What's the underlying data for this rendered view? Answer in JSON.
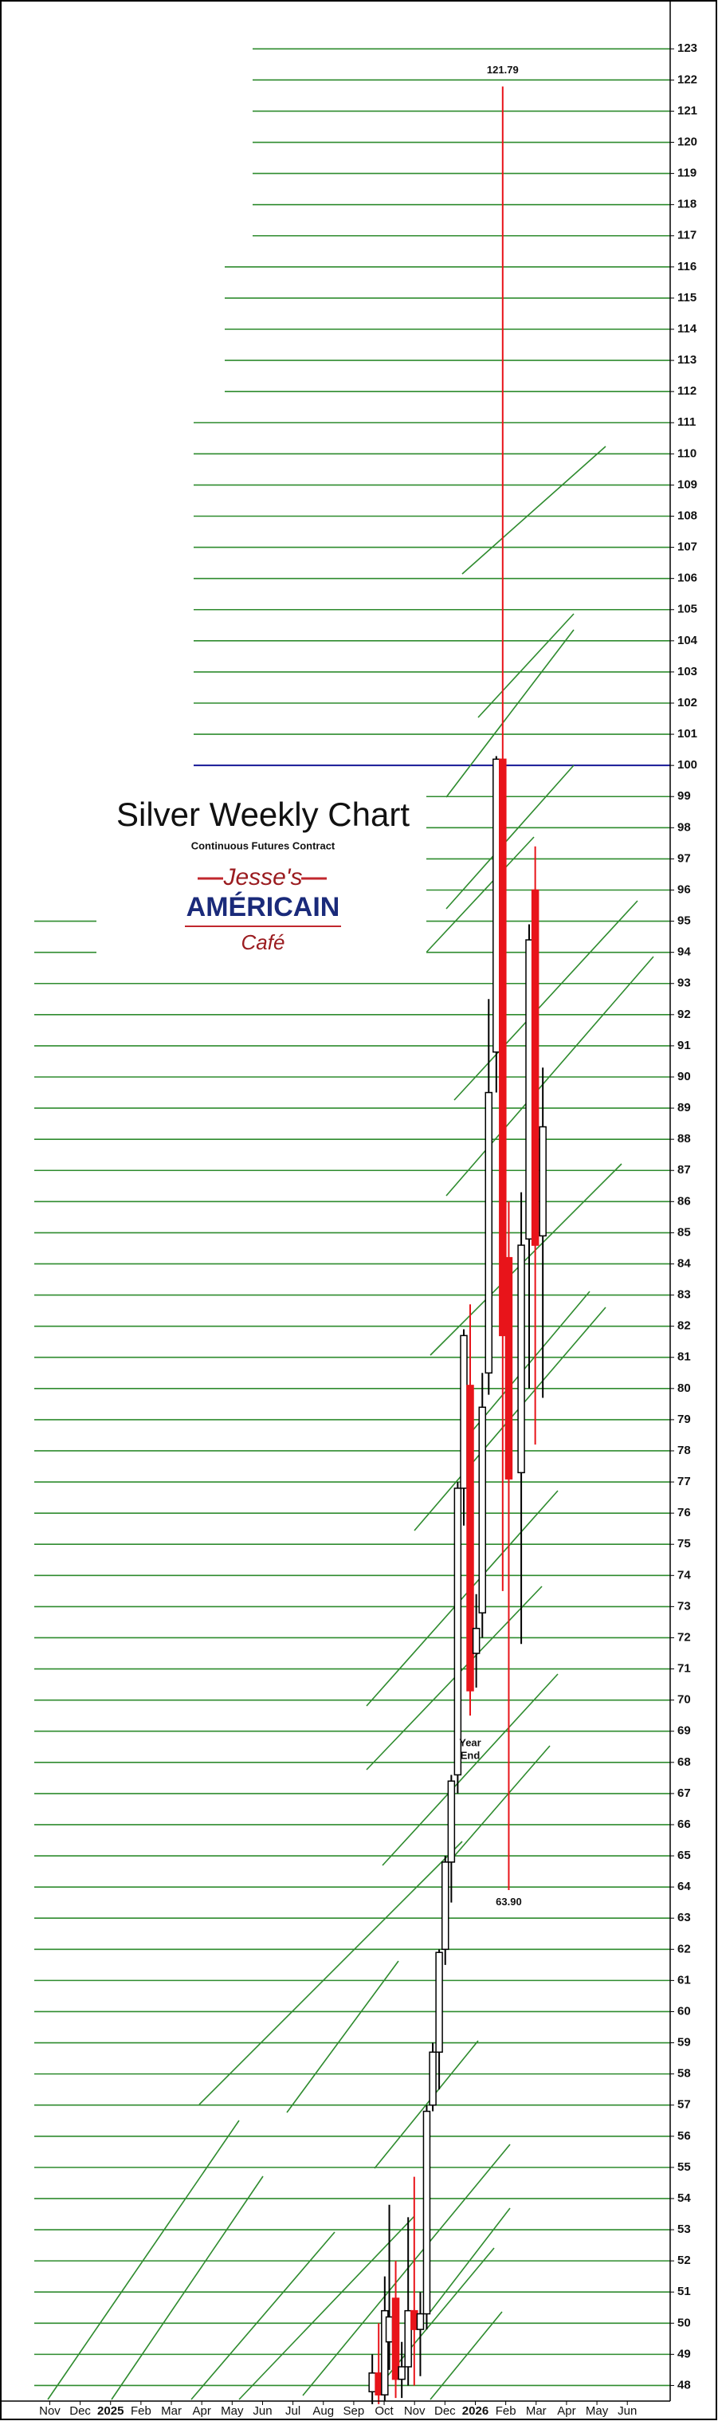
{
  "chart_data": {
    "type": "candlestick",
    "title": "Silver Weekly Chart",
    "subtitle": "Continuous Futures Contract",
    "logo": {
      "line1": "Jesse's",
      "line2": "AMÉRICAIN",
      "line3": "Café"
    },
    "x": [
      10.61,
      10.82,
      11.02,
      11.17,
      11.38,
      11.58,
      11.79,
      11.99,
      12.19,
      12.4,
      12.6,
      12.81,
      13.01,
      13.21,
      13.42,
      13.62,
      13.83,
      14.03,
      14.23,
      14.44,
      14.69,
      14.9,
      15.1,
      15.51,
      15.77,
      15.97,
      16.22
    ],
    "open": [
      47.8,
      48.4,
      47.7,
      49.4,
      50.8,
      48.2,
      48.6,
      50.4,
      49.8,
      50.3,
      57.0,
      58.7,
      62.0,
      64.8,
      67.6,
      76.8,
      80.1,
      71.5,
      72.8,
      80.5,
      90.8,
      100.2,
      84.2,
      77.3,
      84.8,
      96.0,
      84.9
    ],
    "high": [
      49.0,
      50.0,
      51.5,
      53.8,
      52.0,
      49.4,
      53.4,
      54.7,
      51.0,
      57.0,
      59.0,
      62.0,
      65.0,
      67.6,
      77.0,
      81.9,
      82.7,
      73.4,
      80.5,
      92.5,
      100.3,
      121.79,
      86.0,
      86.3,
      94.9,
      97.4,
      90.3
    ],
    "low": [
      47.4,
      47.4,
      47.5,
      48.5,
      47.6,
      47.6,
      48.0,
      48.0,
      48.3,
      49.8,
      56.8,
      57.5,
      61.5,
      63.5,
      67.0,
      75.6,
      69.5,
      70.4,
      72.0,
      79.8,
      89.5,
      73.5,
      63.9,
      71.8,
      80.0,
      78.2,
      79.7
    ],
    "close": [
      48.4,
      47.7,
      50.4,
      50.2,
      48.2,
      48.6,
      50.4,
      49.8,
      50.3,
      56.8,
      58.7,
      61.9,
      64.8,
      67.4,
      76.8,
      81.7,
      70.3,
      72.3,
      79.4,
      89.5,
      100.2,
      81.7,
      77.1,
      84.6,
      94.4,
      84.6,
      88.4
    ],
    "up_color": "#000000",
    "down_color": "#e8141a",
    "annotations": [
      {
        "text": "121.79",
        "x": 14.9,
        "y": 122.3
      },
      {
        "text": "63.90",
        "x": 15.1,
        "y": 63.5
      },
      {
        "text": "Year End",
        "x": 13.83,
        "y": 68.6
      }
    ],
    "reference_line": {
      "value": 100,
      "color": "#1a1a9a"
    },
    "grid": true,
    "grid_color": "#2e8b2e",
    "xlim": [
      -0.51,
      20.41
    ],
    "xticks": [
      {
        "value": 0,
        "label": "Nov"
      },
      {
        "value": 1,
        "label": "Dec"
      },
      {
        "value": 2,
        "label": "2025"
      },
      {
        "value": 3,
        "label": "Feb"
      },
      {
        "value": 4,
        "label": "Mar"
      },
      {
        "value": 5,
        "label": "Apr"
      },
      {
        "value": 6,
        "label": "May"
      },
      {
        "value": 7,
        "label": "Jun"
      },
      {
        "value": 8,
        "label": "Jul"
      },
      {
        "value": 9,
        "label": "Aug"
      },
      {
        "value": 10,
        "label": "Sep"
      },
      {
        "value": 11,
        "label": "Oct"
      },
      {
        "value": 12,
        "label": "Nov"
      },
      {
        "value": 13,
        "label": "Dec"
      },
      {
        "value": 14,
        "label": "2026"
      },
      {
        "value": 15,
        "label": "Feb"
      },
      {
        "value": 16,
        "label": "Mar"
      },
      {
        "value": 17,
        "label": "Apr"
      },
      {
        "value": 18,
        "label": "May"
      },
      {
        "value": 19,
        "label": "Jun"
      }
    ],
    "ylim": [
      47.5,
      123.8
    ],
    "yticks": [
      48,
      49,
      50,
      51,
      52,
      53,
      54,
      55,
      56,
      57,
      58,
      59,
      60,
      61,
      62,
      63,
      64,
      65,
      66,
      67,
      68,
      69,
      70,
      71,
      72,
      73,
      74,
      75,
      76,
      77,
      78,
      79,
      80,
      81,
      82,
      83,
      84,
      85,
      86,
      87,
      88,
      89,
      90,
      91,
      92,
      93,
      94,
      95,
      96,
      97,
      98,
      99,
      100,
      101,
      102,
      103,
      104,
      105,
      106,
      107,
      108,
      109,
      110,
      111,
      112,
      113,
      114,
      115,
      116,
      117,
      118,
      119,
      120,
      121,
      122,
      123
    ],
    "y_axis_side": "right"
  }
}
